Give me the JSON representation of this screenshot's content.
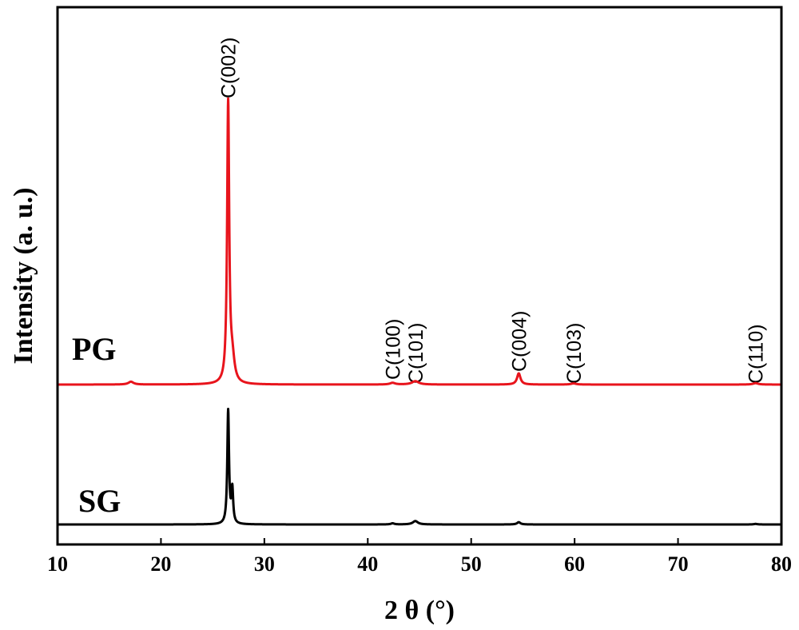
{
  "chart_data": {
    "type": "line",
    "xlabel": "2 θ (°)",
    "ylabel": "Intensity (a. u.)",
    "xlim": [
      10,
      80
    ],
    "xticks": [
      "10",
      "20",
      "30",
      "40",
      "50",
      "60",
      "70",
      "80"
    ],
    "grid": false,
    "series": [
      {
        "name": "PG",
        "color": "#e8141c",
        "baseline": 0.0,
        "peaks": [
          {
            "x": 17.1,
            "h": 0.01,
            "w": 0.3
          },
          {
            "x": 26.5,
            "h": 1.0,
            "w": 0.12
          },
          {
            "x": 26.9,
            "h": 0.08,
            "w": 0.25
          },
          {
            "x": 42.4,
            "h": 0.006,
            "w": 0.3
          },
          {
            "x": 44.6,
            "h": 0.012,
            "w": 0.4
          },
          {
            "x": 54.6,
            "h": 0.04,
            "w": 0.2
          },
          {
            "x": 59.9,
            "h": 0.004,
            "w": 0.3
          },
          {
            "x": 77.5,
            "h": 0.005,
            "w": 0.3
          }
        ]
      },
      {
        "name": "SG",
        "color": "#000000",
        "baseline": 0.0,
        "peaks": [
          {
            "x": 26.5,
            "h": 1.0,
            "w": 0.1
          },
          {
            "x": 26.9,
            "h": 0.3,
            "w": 0.1
          },
          {
            "x": 42.4,
            "h": 0.01,
            "w": 0.2
          },
          {
            "x": 44.6,
            "h": 0.03,
            "w": 0.3
          },
          {
            "x": 54.6,
            "h": 0.02,
            "w": 0.2
          },
          {
            "x": 77.5,
            "h": 0.005,
            "w": 0.2
          }
        ]
      }
    ],
    "annotations": [
      {
        "text": "C(002)",
        "x": 26.5
      },
      {
        "text": "C(100)",
        "x": 42.4
      },
      {
        "text": "C(101)",
        "x": 44.6
      },
      {
        "text": "C(004)",
        "x": 54.6
      },
      {
        "text": "C(103)",
        "x": 59.9
      },
      {
        "text": "C(110)",
        "x": 77.5
      }
    ]
  }
}
